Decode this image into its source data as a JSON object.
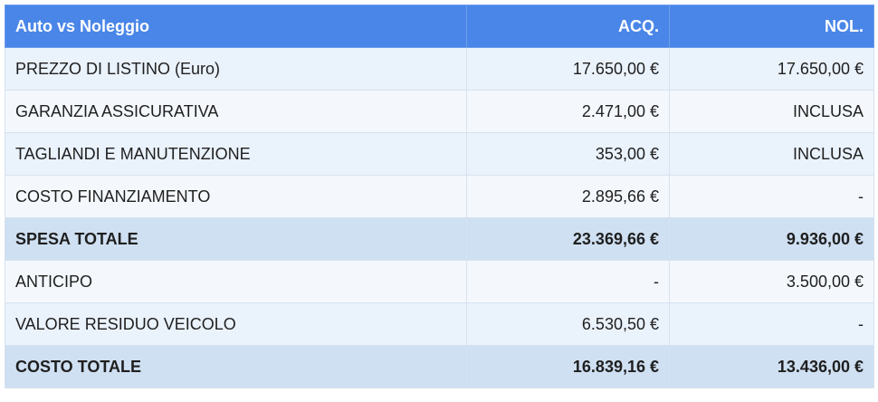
{
  "table": {
    "headers": [
      "Auto vs Noleggio",
      "ACQ.",
      "NOL."
    ],
    "rows": [
      {
        "label": "PREZZO DI LISTINO (Euro)",
        "acq": "17.650,00 €",
        "nol": "17.650,00 €",
        "total": false
      },
      {
        "label": "GARANZIA ASSICURATIVA",
        "acq": "2.471,00 €",
        "nol": "INCLUSA",
        "total": false
      },
      {
        "label": "TAGLIANDI E MANUTENZIONE",
        "acq": "353,00 €",
        "nol": "INCLUSA",
        "total": false
      },
      {
        "label": "COSTO FINANZIAMENTO",
        "acq": "2.895,66 €",
        "nol": "-",
        "total": false
      },
      {
        "label": "SPESA TOTALE",
        "acq": "23.369,66 €",
        "nol": "9.936,00 €",
        "total": true
      },
      {
        "label": "ANTICIPO",
        "acq": "-",
        "nol": "3.500,00 €",
        "total": false
      },
      {
        "label": "VALORE RESIDUO VEICOLO",
        "acq": "6.530,50 €",
        "nol": "-",
        "total": false
      },
      {
        "label": "COSTO TOTALE",
        "acq": "16.839,16 €",
        "nol": "13.436,00 €",
        "total": true
      }
    ]
  },
  "colors": {
    "header_bg": "#4a86e8",
    "row_bg_a": "#eaf2fc",
    "row_bg_b": "#f4f8fd",
    "total_row_bg": "#cfe0f2"
  }
}
